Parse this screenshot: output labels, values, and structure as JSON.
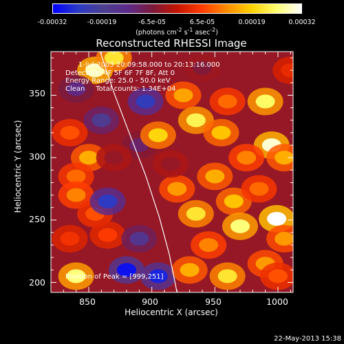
{
  "colorbar": {
    "tick_labels": [
      "-0.00032",
      "-0.00019",
      "-6.5e-05",
      "6.5e-05",
      "0.00019",
      "0.00032"
    ],
    "units_html": "(photons cm<sup>-2</sup> s<sup>-1</sup> asec<sup>-2</sup>)",
    "colors": [
      "#0000ff",
      "#2a3ac6",
      "#4b3f90",
      "#5d2a8c",
      "#7b1a3c",
      "#c41400",
      "#ff3b00",
      "#ff8c00",
      "#ffd000",
      "#ffff70",
      "#ffffff"
    ]
  },
  "title": "Reconstructed RHESSI Image",
  "annotations": {
    "time_range": "1-Jul-2003 20:09:58.000 to 20:13:16.000",
    "detectors": "Detectors: 4F 5F 6F 7F 8F, Att 0",
    "energy": "Energy Range: 25.0 - 50.0 keV",
    "clean": "Clean     Total counts: 1.34E+04",
    "peak": "Position of Peak = [999,251]"
  },
  "footer_timestamp": "22-May-2013 15:38",
  "chart_data": {
    "type": "heatmap",
    "title": "Reconstructed RHESSI Image",
    "xlabel": "Heliocentric X (arcsec)",
    "ylabel": "Heliocentric Y (arcsec)",
    "xlim": [
      820,
      1012
    ],
    "ylim": [
      192,
      385
    ],
    "x_ticks": [
      850,
      900,
      950,
      1000
    ],
    "y_ticks": [
      200,
      250,
      300,
      350
    ],
    "colorbar_range": [
      -0.00032,
      0.00032
    ],
    "limb_curve": {
      "x": [
        859,
        870,
        882,
        895,
        906,
        914,
        920
      ],
      "y": [
        385,
        352,
        320,
        286,
        252,
        222,
        192
      ]
    },
    "blobs": [
      {
        "x": 855,
        "y": 370,
        "v": 0.00029
      },
      {
        "x": 870,
        "y": 380,
        "v": 0.00022
      },
      {
        "x": 840,
        "y": 355,
        "v": -0.00012
      },
      {
        "x": 895,
        "y": 345,
        "v": -0.00024
      },
      {
        "x": 890,
        "y": 310,
        "v": -0.0001
      },
      {
        "x": 835,
        "y": 320,
        "v": 8e-05
      },
      {
        "x": 860,
        "y": 330,
        "v": -0.00018
      },
      {
        "x": 850,
        "y": 300,
        "v": 0.00016
      },
      {
        "x": 870,
        "y": 300,
        "v": -4e-05
      },
      {
        "x": 840,
        "y": 285,
        "v": 0.0001
      },
      {
        "x": 840,
        "y": 270,
        "v": 0.00012
      },
      {
        "x": 855,
        "y": 255,
        "v": 8e-05
      },
      {
        "x": 835,
        "y": 235,
        "v": 5e-05
      },
      {
        "x": 865,
        "y": 265,
        "v": -0.00025
      },
      {
        "x": 865,
        "y": 238,
        "v": 6e-05
      },
      {
        "x": 890,
        "y": 235,
        "v": -0.00016
      },
      {
        "x": 880,
        "y": 210,
        "v": -0.0003
      },
      {
        "x": 840,
        "y": 205,
        "v": 0.00026
      },
      {
        "x": 905,
        "y": 205,
        "v": -0.00028
      },
      {
        "x": 925,
        "y": 350,
        "v": 0.00015
      },
      {
        "x": 935,
        "y": 330,
        "v": 0.00024
      },
      {
        "x": 905,
        "y": 318,
        "v": 0.0002
      },
      {
        "x": 955,
        "y": 320,
        "v": 0.00018
      },
      {
        "x": 960,
        "y": 345,
        "v": 0.0001
      },
      {
        "x": 990,
        "y": 345,
        "v": 0.00025
      },
      {
        "x": 995,
        "y": 310,
        "v": 0.0003
      },
      {
        "x": 1005,
        "y": 300,
        "v": 0.00016
      },
      {
        "x": 975,
        "y": 300,
        "v": 0.00012
      },
      {
        "x": 950,
        "y": 285,
        "v": 0.00016
      },
      {
        "x": 920,
        "y": 275,
        "v": 0.00014
      },
      {
        "x": 935,
        "y": 255,
        "v": 0.00022
      },
      {
        "x": 965,
        "y": 265,
        "v": 0.00018
      },
      {
        "x": 970,
        "y": 245,
        "v": 0.00026
      },
      {
        "x": 999,
        "y": 251,
        "v": 0.00032
      },
      {
        "x": 1005,
        "y": 235,
        "v": 0.00014
      },
      {
        "x": 985,
        "y": 275,
        "v": 0.0001
      },
      {
        "x": 945,
        "y": 230,
        "v": 0.00012
      },
      {
        "x": 930,
        "y": 210,
        "v": 0.00016
      },
      {
        "x": 960,
        "y": 205,
        "v": 0.00022
      },
      {
        "x": 990,
        "y": 215,
        "v": 0.00014
      },
      {
        "x": 1000,
        "y": 205,
        "v": 8e-05
      },
      {
        "x": 1010,
        "y": 370,
        "v": 4e-05
      },
      {
        "x": 940,
        "y": 372,
        "v": -6e-05
      },
      {
        "x": 915,
        "y": 295,
        "v": -4e-05
      }
    ]
  }
}
